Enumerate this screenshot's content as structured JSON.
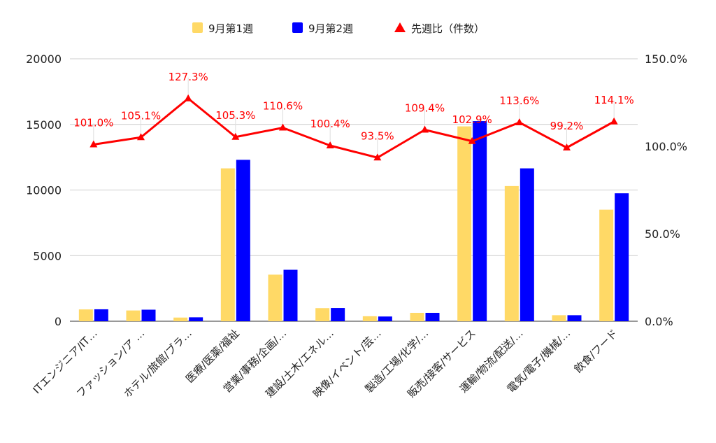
{
  "chart_data": {
    "type": "bar",
    "categories": [
      "ITエンジニア/IT…",
      "ファッション/ア …",
      "ホテル/旅館/ブラ…",
      "医療/医薬/福祉",
      "営業/事務/企画/…",
      "建設/土木/エネル…",
      "映像/イベント/芸…",
      "製造/工場/化学/…",
      "販売/接客/サービス",
      "運輸/物流/配送/…",
      "電気/電子/機械/…",
      "飲食/フード"
    ],
    "series": [
      {
        "name": "9月第1週",
        "type": "bar",
        "axis": "left",
        "color": "#FFD966",
        "values": [
          900,
          820,
          280,
          11650,
          3550,
          1000,
          380,
          640,
          14850,
          10300,
          460,
          8500
        ]
      },
      {
        "name": "9月第2週",
        "type": "bar",
        "axis": "left",
        "color": "#0000FF",
        "values": [
          910,
          880,
          300,
          12300,
          3920,
          1010,
          360,
          640,
          15250,
          11650,
          460,
          9750
        ]
      },
      {
        "name": "先週比（件数）",
        "type": "line",
        "axis": "right",
        "color": "#FF0000",
        "values": [
          101.0,
          105.1,
          127.3,
          105.3,
          110.6,
          100.4,
          93.5,
          109.4,
          102.9,
          113.6,
          99.2,
          114.1
        ],
        "labels": [
          "101.0%",
          "105.1%",
          "127.3%",
          "105.3%",
          "110.6%",
          "100.4%",
          "93.5%",
          "109.4%",
          "102.9%",
          "113.6%",
          "99.2%",
          "114.1%"
        ]
      }
    ],
    "y_left": {
      "ylim": [
        0,
        20000
      ],
      "ticks": [
        0,
        5000,
        10000,
        15000,
        20000
      ],
      "tick_labels": [
        "0",
        "5000",
        "10000",
        "15000",
        "20000"
      ]
    },
    "y_right": {
      "ylim": [
        0,
        150
      ],
      "ticks": [
        0,
        50,
        100,
        150
      ],
      "tick_labels": [
        "0.0%",
        "50.0%",
        "100.0%",
        "150.0%"
      ]
    },
    "grid": true,
    "legend_position": "top-center",
    "title": "",
    "xlabel": "",
    "ylabel": ""
  }
}
